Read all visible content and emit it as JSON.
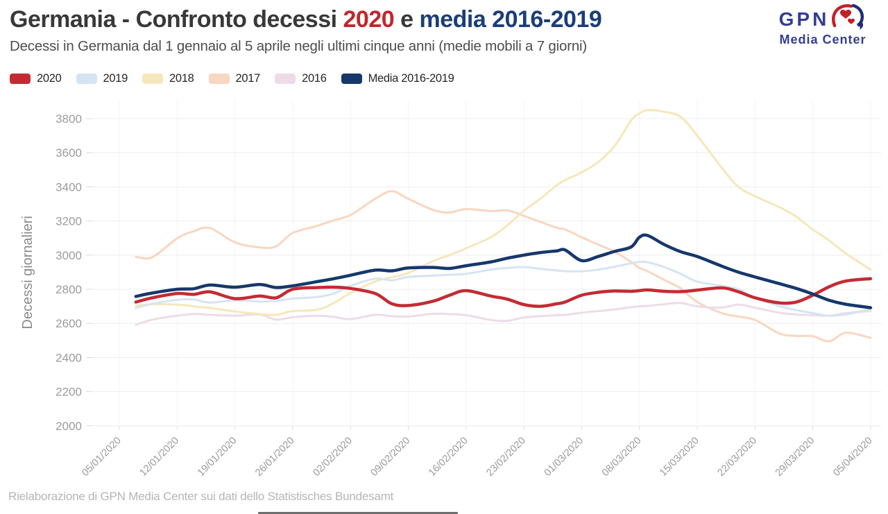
{
  "title": {
    "part1": "Germania - Confronto decessi",
    "year": "2020",
    "connector": "e",
    "part2": "media 2016-2019"
  },
  "subtitle": "Decessi in Germania dal 1 gennaio al 5 aprile negli ultimi cinque anni (medie mobili a 7 giorni)",
  "logo": {
    "line1": "GPN",
    "line2": "Media Center"
  },
  "footer": "Rielaborazione di GPN Media Center sui dati dello Statistisches Bundesamt",
  "colors": {
    "title_text": "#383838",
    "title_red": "#c0272d",
    "title_navy": "#1b3e78",
    "subtitle_text": "#4d4d4d",
    "axis_text": "#999999",
    "gridline": "#ececec",
    "footer_text": "#b5b5b5",
    "logo_blue": "#333e94",
    "logo_red": "#c22028"
  },
  "chart_data": {
    "type": "line",
    "title": "Germania - Confronto decessi 2020 e media 2016-2019",
    "xlabel": "",
    "ylabel": "Decessi giornalieri",
    "ylim": [
      2000,
      3900
    ],
    "grid": true,
    "legend_position": "top-left",
    "yticks": [
      2000,
      2200,
      2400,
      2600,
      2800,
      3000,
      3200,
      3400,
      3600,
      3800
    ],
    "xtick_labels": [
      "05/01/2020",
      "12/01/2020",
      "19/01/2020",
      "26/01/2020",
      "02/02/2020",
      "09/02/2020",
      "16/02/2020",
      "23/02/2020",
      "01/03/2020",
      "08/03/2020",
      "15/03/2020",
      "22/03/2020",
      "29/03/2020",
      "05/04/2020"
    ],
    "xtick_days": [
      5,
      12,
      19,
      26,
      33,
      40,
      47,
      54,
      61,
      68,
      75,
      82,
      89,
      96
    ],
    "x_days_of_year_2020": [
      7,
      9,
      12,
      14,
      16,
      19,
      22,
      24,
      26,
      29,
      31,
      33,
      36,
      38,
      40,
      43,
      45,
      47,
      50,
      52,
      54,
      56,
      58,
      59,
      61,
      63,
      65,
      67,
      68,
      69,
      71,
      73,
      75,
      78,
      80,
      82,
      85,
      87,
      89,
      91,
      93,
      96
    ],
    "series": [
      {
        "name": "2020",
        "color": "#c32b33",
        "width": 4.5,
        "values": [
          2725,
          2750,
          2775,
          2770,
          2785,
          2745,
          2760,
          2750,
          2800,
          2810,
          2812,
          2805,
          2775,
          2715,
          2705,
          2730,
          2765,
          2792,
          2760,
          2742,
          2710,
          2700,
          2715,
          2725,
          2765,
          2782,
          2790,
          2788,
          2792,
          2796,
          2788,
          2786,
          2795,
          2808,
          2785,
          2750,
          2720,
          2725,
          2765,
          2815,
          2848,
          2862
        ]
      },
      {
        "name": "2019",
        "color": "#d6e4f2",
        "width": 3,
        "values": [
          2690,
          2715,
          2738,
          2740,
          2722,
          2735,
          2728,
          2732,
          2745,
          2755,
          2775,
          2820,
          2862,
          2852,
          2872,
          2880,
          2885,
          2890,
          2915,
          2925,
          2930,
          2920,
          2910,
          2906,
          2905,
          2915,
          2932,
          2952,
          2960,
          2958,
          2930,
          2890,
          2845,
          2820,
          2800,
          2750,
          2700,
          2678,
          2660,
          2645,
          2652,
          2685
        ]
      },
      {
        "name": "2018",
        "color": "#f6e7ba",
        "width": 3,
        "values": [
          2705,
          2712,
          2710,
          2700,
          2690,
          2670,
          2655,
          2650,
          2672,
          2680,
          2720,
          2778,
          2845,
          2870,
          2895,
          2965,
          3000,
          3040,
          3105,
          3175,
          3260,
          3330,
          3410,
          3440,
          3485,
          3545,
          3640,
          3790,
          3830,
          3850,
          3840,
          3810,
          3700,
          3510,
          3400,
          3345,
          3280,
          3225,
          3150,
          3085,
          3010,
          2915
        ]
      },
      {
        "name": "2017",
        "color": "#f9d6c0",
        "width": 3,
        "values": [
          2990,
          2988,
          3098,
          3140,
          3158,
          3075,
          3045,
          3052,
          3130,
          3172,
          3205,
          3235,
          3330,
          3375,
          3330,
          3265,
          3250,
          3270,
          3258,
          3262,
          3230,
          3195,
          3160,
          3150,
          3105,
          3062,
          3020,
          2960,
          2925,
          2905,
          2855,
          2805,
          2725,
          2660,
          2640,
          2620,
          2540,
          2527,
          2525,
          2495,
          2545,
          2515
        ]
      },
      {
        "name": "2016",
        "color": "#eddce7",
        "width": 3,
        "values": [
          2592,
          2622,
          2645,
          2655,
          2650,
          2645,
          2652,
          2622,
          2636,
          2645,
          2638,
          2625,
          2650,
          2642,
          2640,
          2656,
          2654,
          2648,
          2620,
          2615,
          2635,
          2642,
          2648,
          2650,
          2662,
          2672,
          2682,
          2695,
          2700,
          2702,
          2712,
          2720,
          2700,
          2693,
          2710,
          2692,
          2662,
          2652,
          2648,
          2645,
          2660,
          2672
        ]
      },
      {
        "name": "Media 2016-2019",
        "color": "#16386b",
        "width": 4.5,
        "values": [
          2758,
          2778,
          2800,
          2803,
          2825,
          2812,
          2828,
          2810,
          2820,
          2845,
          2862,
          2882,
          2912,
          2908,
          2925,
          2928,
          2922,
          2938,
          2960,
          2982,
          3000,
          3015,
          3025,
          3030,
          2968,
          2992,
          3022,
          3048,
          3105,
          3115,
          3062,
          3020,
          2992,
          2935,
          2900,
          2872,
          2832,
          2805,
          2772,
          2735,
          2712,
          2692
        ]
      }
    ]
  }
}
